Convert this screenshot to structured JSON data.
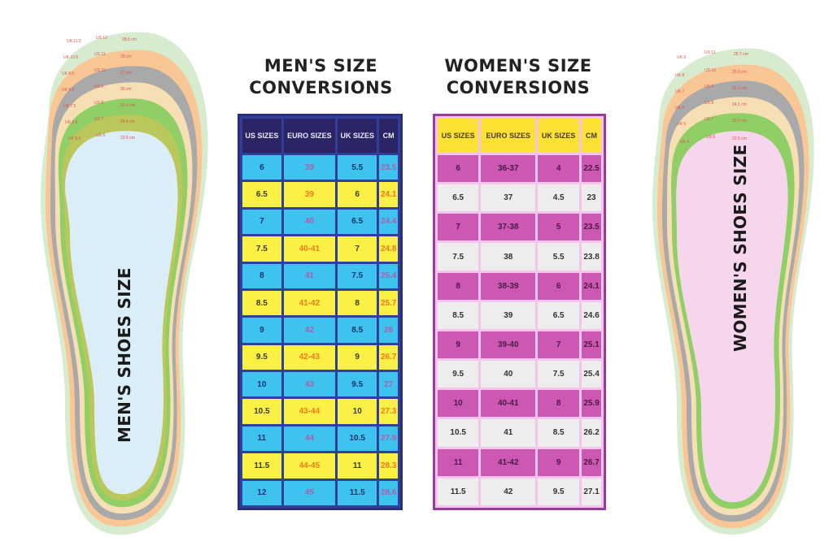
{
  "titles": {
    "men_line1": "MEN'S SIZE",
    "men_line2": "CONVERSIONS",
    "women_line1": "WOMEN'S SIZE",
    "women_line2": "CONVERSIONS"
  },
  "foot_labels": {
    "men": "MEN'S SHOES SIZE",
    "women": "WOMEN'S SHOES SIZE"
  },
  "colors": {
    "men_header": "#2b2566",
    "men_row_blue": "#3dc3ee",
    "men_row_yellow": "#fbf044",
    "women_header": "#fde135",
    "women_row_magenta": "#cc58b4",
    "women_row_gray": "#ededed",
    "men_insole": "#dbeef8",
    "women_insole": "#f6d6ec"
  },
  "men_table": {
    "headers": [
      "US SIZES",
      "EURO SIZES",
      "UK SIZES",
      "CM"
    ],
    "rows": [
      [
        "6",
        "39",
        "5.5",
        "23.5"
      ],
      [
        "6.5",
        "39",
        "6",
        "24.1"
      ],
      [
        "7",
        "40",
        "6.5",
        "24.4"
      ],
      [
        "7.5",
        "40-41",
        "7",
        "24.8"
      ],
      [
        "8",
        "41",
        "7.5",
        "25.4"
      ],
      [
        "8.5",
        "41-42",
        "8",
        "25.7"
      ],
      [
        "9",
        "42",
        "8.5",
        "26"
      ],
      [
        "9.5",
        "42-43",
        "9",
        "26.7"
      ],
      [
        "10",
        "43",
        "9.5",
        "27"
      ],
      [
        "10.5",
        "43-44",
        "10",
        "27.3"
      ],
      [
        "11",
        "44",
        "10.5",
        "27.9"
      ],
      [
        "11.5",
        "44-45",
        "11",
        "28.3"
      ],
      [
        "12",
        "45",
        "11.5",
        "28.6"
      ]
    ]
  },
  "women_table": {
    "headers": [
      "US SIZES",
      "EURO SIZES",
      "UK SIZES",
      "CM"
    ],
    "rows": [
      [
        "6",
        "36-37",
        "4",
        "22.5"
      ],
      [
        "6.5",
        "37",
        "4.5",
        "23"
      ],
      [
        "7",
        "37-38",
        "5",
        "23.5"
      ],
      [
        "7.5",
        "38",
        "5.5",
        "23.8"
      ],
      [
        "8",
        "38-39",
        "6",
        "24.1"
      ],
      [
        "8.5",
        "39",
        "6.5",
        "24.6"
      ],
      [
        "9",
        "39-40",
        "7",
        "25.1"
      ],
      [
        "9.5",
        "40",
        "7.5",
        "25.4"
      ],
      [
        "10",
        "40-41",
        "8",
        "25.9"
      ],
      [
        "10.5",
        "41",
        "8.5",
        "26.2"
      ],
      [
        "11",
        "41-42",
        "9",
        "26.7"
      ],
      [
        "11.5",
        "42",
        "9.5",
        "27.1"
      ]
    ]
  }
}
